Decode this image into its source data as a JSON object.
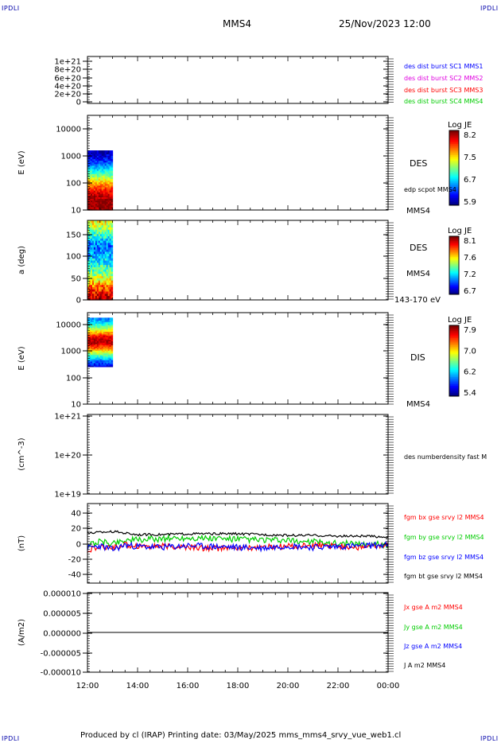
{
  "header": {
    "corner_tl": "IPDLI",
    "corner_tr": "IPDLI",
    "corner_bl": "IPDLI",
    "corner_br": "IPDLI",
    "spacecraft": "MMS4",
    "datetime": "25/Nov/2023 12:00"
  },
  "footer": {
    "text": "Produced by cl (IRAP)   Printing date: 03/May/2025   mms_mms4_srvy_vue_web1.cl"
  },
  "colors": {
    "blue": "#0000ff",
    "magenta": "#e000e0",
    "red": "#ff0000",
    "green": "#00cc00",
    "black": "#000000"
  },
  "chart_data": {
    "type": "multi-panel",
    "time_axis": {
      "ticks": [
        "12:00",
        "14:00",
        "16:00",
        "18:00",
        "20:00",
        "22:00",
        "00:00"
      ],
      "range_hours": [
        12,
        24
      ]
    },
    "panels": [
      {
        "id": "dist",
        "type": "line",
        "ylabel": "",
        "yticks": [
          "1e+21",
          "8e+20",
          "6e+20",
          "4e+20",
          "2e+20",
          "0"
        ],
        "ylim": [
          0,
          1e+21
        ],
        "legend": [
          {
            "name": "des dist burst SC1 MMS1",
            "color": "#0000ff"
          },
          {
            "name": "des dist burst SC2 MMS2",
            "color": "#e000e0"
          },
          {
            "name": "des dist burst SC3 MMS3",
            "color": "#ff0000"
          },
          {
            "name": "des dist burst SC4 MMS4",
            "color": "#00cc00"
          }
        ],
        "series": [
          {
            "name": "",
            "style": "dashed",
            "x": [
              12,
              24
            ],
            "y": [
              0,
              0
            ]
          }
        ]
      },
      {
        "id": "des_energy",
        "type": "heatmap",
        "ylabel": "E (eV)",
        "yscale": "log",
        "ylim": [
          10,
          15000
        ],
        "yticks": [
          "10000",
          "1000",
          "100",
          "10"
        ],
        "data_x_range": [
          12.0,
          13.0
        ],
        "data_y_range": [
          10,
          1000
        ],
        "profile": [
          {
            "y": 10,
            "v": 8.1
          },
          {
            "y": 20,
            "v": 8.2
          },
          {
            "y": 40,
            "v": 8.0
          },
          {
            "y": 80,
            "v": 7.6
          },
          {
            "y": 150,
            "v": 7.1
          },
          {
            "y": 300,
            "v": 6.6
          },
          {
            "y": 600,
            "v": 6.2
          },
          {
            "y": 1000,
            "v": 6.0
          }
        ],
        "colorbar": {
          "title": "Log JE",
          "ticks": [
            "8.2",
            "7.5",
            "6.7",
            "5.9"
          ],
          "min": 5.9,
          "max": 8.2
        },
        "labels": [
          "DES",
          "edp scpot MMS4",
          "MMS4"
        ]
      },
      {
        "id": "des_pitch",
        "type": "heatmap",
        "ylabel": "a (deg)",
        "yscale": "linear",
        "ylim": [
          0,
          180
        ],
        "yticks": [
          "150",
          "100",
          "50",
          "0"
        ],
        "data_x_range": [
          12.0,
          13.0
        ],
        "data_y_range": [
          0,
          180
        ],
        "profile": [
          {
            "y": 0,
            "v": 8.1
          },
          {
            "y": 20,
            "v": 7.8
          },
          {
            "y": 40,
            "v": 7.4
          },
          {
            "y": 70,
            "v": 7.2
          },
          {
            "y": 110,
            "v": 7.0
          },
          {
            "y": 150,
            "v": 7.3
          },
          {
            "y": 180,
            "v": 7.6
          }
        ],
        "colorbar": {
          "title": "Log JE",
          "ticks": [
            "8.1",
            "7.6",
            "7.2",
            "6.7"
          ],
          "min": 6.7,
          "max": 8.1
        },
        "labels": [
          "DES",
          "MMS4",
          "143-170 eV"
        ]
      },
      {
        "id": "dis_energy",
        "type": "heatmap",
        "ylabel": "E (eV)",
        "yscale": "log",
        "ylim": [
          10,
          15000
        ],
        "yticks": [
          "10000",
          "1000",
          "100",
          "10"
        ],
        "data_x_range": [
          12.0,
          13.0
        ],
        "data_y_range": [
          200,
          10000
        ],
        "profile": [
          {
            "y": 200,
            "v": 5.6
          },
          {
            "y": 350,
            "v": 6.0
          },
          {
            "y": 600,
            "v": 6.6
          },
          {
            "y": 1000,
            "v": 7.3
          },
          {
            "y": 1500,
            "v": 7.8
          },
          {
            "y": 2200,
            "v": 7.6
          },
          {
            "y": 3500,
            "v": 6.9
          },
          {
            "y": 6000,
            "v": 6.4
          },
          {
            "y": 10000,
            "v": 6.0
          }
        ],
        "colorbar": {
          "title": "Log JE",
          "ticks": [
            "7.9",
            "7.0",
            "6.2",
            "5.4"
          ],
          "min": 5.4,
          "max": 7.9
        },
        "labels": [
          "DIS",
          "MMS4"
        ]
      },
      {
        "id": "density",
        "type": "line",
        "ylabel": "(cm^-3)",
        "yscale": "log",
        "ylim": [
          1e+19,
          1e+21
        ],
        "yticks": [
          "1e+21",
          "1e+20",
          "1e+19"
        ],
        "legend": [
          {
            "name": "des numberdensity fast M",
            "color": "#000000"
          }
        ],
        "series": []
      },
      {
        "id": "fgm",
        "type": "line",
        "ylabel": "(nT)",
        "ylim": [
          -50,
          50
        ],
        "yticks": [
          "40",
          "20",
          "0",
          "-20",
          "-40"
        ],
        "legend": [
          {
            "name": "fgm bx gse srvy l2 MMS4",
            "color": "#ff0000"
          },
          {
            "name": "fgm by gse srvy l2 MMS4",
            "color": "#00cc00"
          },
          {
            "name": "fgm bz gse srvy l2 MMS4",
            "color": "#0000ff"
          },
          {
            "name": "fgm bt gse srvy l2 MMS4",
            "color": "#000000"
          }
        ],
        "series": [
          {
            "name": "fgm bt gse srvy l2 MMS4",
            "color": "#000000",
            "x": [
              12,
              12.5,
              13,
              13.5,
              14,
              15,
              16,
              17,
              18,
              19,
              20,
              21,
              22,
              23,
              24
            ],
            "y": [
              13,
              14,
              15,
              13,
              11,
              11,
              12,
              12,
              12,
              11,
              10,
              10,
              9,
              9,
              8
            ]
          },
          {
            "name": "fgm by gse srvy l2 MMS4",
            "color": "#00cc00",
            "x": [
              12,
              12.5,
              13,
              13.5,
              14,
              15,
              16,
              17,
              18,
              19,
              20,
              21,
              22,
              23,
              24
            ],
            "y": [
              -2,
              2,
              0,
              4,
              4,
              6,
              7,
              6,
              5,
              4,
              3,
              2,
              0,
              -1,
              -2
            ]
          },
          {
            "name": "fgm bx gse srvy l2 MMS4",
            "color": "#ff0000",
            "x": [
              12,
              12.5,
              13,
              13.5,
              14,
              15,
              16,
              17,
              18,
              19,
              20,
              21,
              22,
              23,
              24
            ],
            "y": [
              -8,
              -6,
              -5,
              -2,
              -3,
              -4,
              -5,
              -6,
              -6,
              -5,
              -4,
              -3,
              -4,
              -5,
              -3
            ]
          },
          {
            "name": "fgm bz gse srvy l2 MMS4",
            "color": "#0000ff",
            "x": [
              12,
              12.5,
              13,
              13.5,
              14,
              15,
              16,
              17,
              18,
              19,
              20,
              21,
              22,
              23,
              24
            ],
            "y": [
              -6,
              -3,
              -8,
              -2,
              -4,
              -5,
              -3,
              -4,
              -5,
              -6,
              -3,
              -5,
              -4,
              -3,
              -2
            ]
          }
        ]
      },
      {
        "id": "current",
        "type": "line",
        "ylabel": "(A/m2)",
        "ylim": [
          -1e-05,
          1e-05
        ],
        "yticks": [
          "0.000010",
          "0.000005",
          "0.000000",
          "-0.000005",
          "-0.000010"
        ],
        "legend": [
          {
            "name": "Jx gse A m2 MMS4",
            "color": "#ff0000"
          },
          {
            "name": "Jy gse A m2 MMS4",
            "color": "#00cc00"
          },
          {
            "name": "Jz gse A m2 MMS4",
            "color": "#0000ff"
          },
          {
            "name": "J A m2 MMS4",
            "color": "#000000"
          }
        ],
        "series": [
          {
            "name": "J A m2 MMS4",
            "color": "#000000",
            "x": [
              12,
              24
            ],
            "y": [
              0,
              0
            ]
          }
        ]
      }
    ]
  }
}
